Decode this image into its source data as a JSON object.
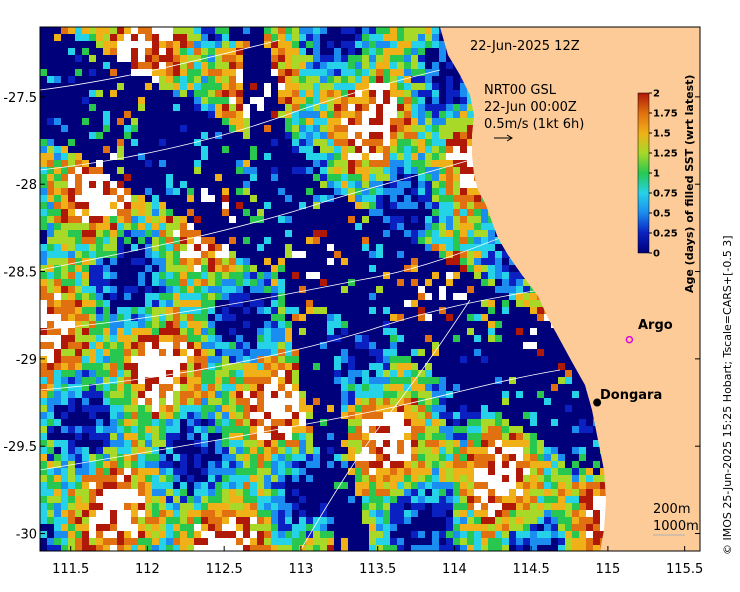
{
  "map": {
    "title": "22-Jun-2025 12Z",
    "product": "NRT00 GSL",
    "product_time": "22-Jun 00:00Z",
    "vector_scale_label": "0.5m/s (1kt 6h)",
    "credit": "© IMOS 25-Jun-2025 15:25 Hobart; Tscale=CARS+[-0.5 3]",
    "land_color": "#fccb98",
    "missing_color": "#ffffff",
    "x_ticks": [
      "111.5",
      "112",
      "112.5",
      "113",
      "113.5",
      "114",
      "114.5",
      "115",
      "115.5"
    ],
    "y_ticks": [
      "-27.5",
      "-28",
      "-28.5",
      "-29",
      "-29.5",
      "-30"
    ],
    "x_range": [
      111.3,
      115.6
    ],
    "y_range": [
      -30.1,
      -27.1
    ]
  },
  "colorbar": {
    "title": "Age (days) of filled SST (wrt latest)",
    "ticks": [
      "0",
      "0.25",
      "0.5",
      "0.75",
      "1",
      "1.25",
      "1.5",
      "1.75",
      "2"
    ],
    "range": [
      0,
      2
    ],
    "colors": [
      "#00007a",
      "#0a20c0",
      "#1b8cf0",
      "#26d2e8",
      "#28c850",
      "#a8d828",
      "#f0b018",
      "#e07010",
      "#b01808"
    ]
  },
  "places": [
    {
      "name": "Argo",
      "lon": 115.14,
      "lat": -28.89,
      "marker": "magenta-circle"
    },
    {
      "name": "Dongara",
      "lon": 114.93,
      "lat": -29.25,
      "marker": "black-dot"
    }
  ],
  "isobaths": {
    "labels": [
      "200m",
      "1000m"
    ]
  }
}
